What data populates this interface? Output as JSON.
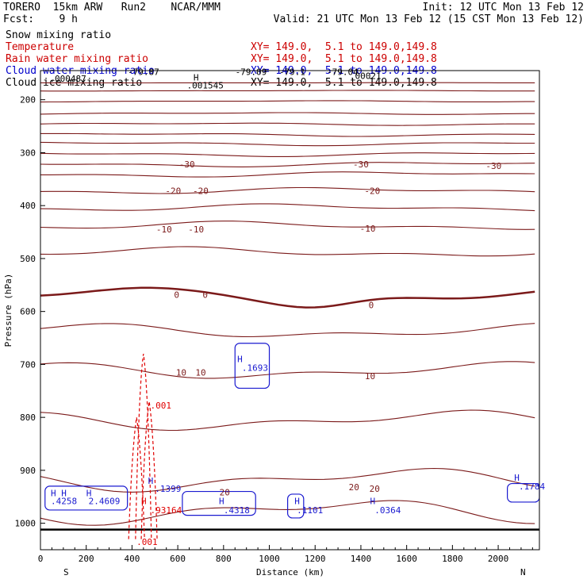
{
  "header": {
    "model": "TORERO  15km ARW   Run2    NCAR/MMM",
    "init": "Init: 12 UTC Mon 13 Feb 12",
    "fcst": "Fcst:    9 h",
    "valid": "Valid: 21 UTC Mon 13 Feb 12 (15 CST Mon 13 Feb 12)"
  },
  "fields": [
    {
      "name": "Snow mixing ratio",
      "color": "#000000",
      "xy": ""
    },
    {
      "name": "Temperature",
      "color": "#cc0000",
      "xy": "XY= 149.0,  5.1 to 149.0,149.8"
    },
    {
      "name": "Rain water mixing ratio",
      "color": "#cc0000",
      "xy": "XY= 149.0,  5.1 to 149.0,149.8"
    },
    {
      "name": "Cloud water mixing ratio",
      "color": "#0000cc",
      "xy": "XY= 149.0,  5.1 to 149.0,149.8"
    },
    {
      "name": "Cloud ice mixing ratio",
      "color": "#000000",
      "xy": "XY= 149.0,  5.1 to 149.0,149.8"
    }
  ],
  "colors": {
    "temperature": "#7b1a1a",
    "rain": "#e00000",
    "cloud_water": "#1a1ad0",
    "ice": "#000000"
  },
  "chart_data": {
    "type": "contour",
    "xlabel": "Distance (km)",
    "ylabel": "Pressure (hPa)",
    "xlim": [
      0,
      2180
    ],
    "ylim": [
      1050,
      145
    ],
    "xticks": [
      0,
      200,
      400,
      600,
      800,
      1000,
      1200,
      1400,
      1600,
      1800,
      2000
    ],
    "yticks": [
      200,
      300,
      400,
      500,
      600,
      700,
      800,
      900,
      1000
    ],
    "end_labels": {
      "left": "S",
      "right": "N"
    },
    "surface_pressure": 1012,
    "temperature_levels": [
      {
        "t": -70,
        "p": 168
      },
      {
        "t": -65,
        "p": 183
      },
      {
        "t": -60,
        "p": 203
      },
      {
        "t": -55,
        "p": 226
      },
      {
        "t": -50,
        "p": 246
      },
      {
        "t": -45,
        "p": 266
      },
      {
        "t": -40,
        "p": 283
      },
      {
        "t": -35,
        "p": 303
      },
      {
        "t": -30,
        "p": 322
      },
      {
        "t": -25,
        "p": 341
      },
      {
        "t": -20,
        "p": 372
      },
      {
        "t": -15,
        "p": 404
      },
      {
        "t": -10,
        "p": 438
      },
      {
        "t": -5,
        "p": 488
      },
      {
        "t": 0,
        "p": 568
      },
      {
        "t": 5,
        "p": 637
      },
      {
        "t": 10,
        "p": 712
      },
      {
        "t": 15,
        "p": 806
      },
      {
        "t": 20,
        "p": 918
      },
      {
        "t": 25,
        "p": 978
      }
    ],
    "temperature_labels": [
      {
        "text": "-30",
        "x": 640,
        "p": 322
      },
      {
        "text": "-30",
        "x": 1400,
        "p": 322
      },
      {
        "text": "-30",
        "x": 1980,
        "p": 325
      },
      {
        "text": "-20",
        "x": 580,
        "p": 372
      },
      {
        "text": "-20",
        "x": 700,
        "p": 372
      },
      {
        "text": "-20",
        "x": 1450,
        "p": 372
      },
      {
        "text": "-10",
        "x": 540,
        "p": 445
      },
      {
        "text": "-10",
        "x": 680,
        "p": 445
      },
      {
        "text": "-10",
        "x": 1430,
        "p": 443
      },
      {
        "text": "0",
        "x": 595,
        "p": 568
      },
      {
        "text": "0",
        "x": 720,
        "p": 568
      },
      {
        "text": "0",
        "x": 1445,
        "p": 588
      },
      {
        "text": "10",
        "x": 615,
        "p": 715
      },
      {
        "text": "10",
        "x": 700,
        "p": 715
      },
      {
        "text": "10",
        "x": 1440,
        "p": 722
      },
      {
        "text": "20",
        "x": 805,
        "p": 941
      },
      {
        "text": "20",
        "x": 1370,
        "p": 932
      },
      {
        "text": "20",
        "x": 1460,
        "p": 935
      }
    ],
    "top_labels": [
      {
        "text": ".000487",
        "x": 120,
        "p": 160,
        "color": "#000000"
      },
      {
        "text": "H",
        "x": 680,
        "p": 158,
        "color": "#000000"
      },
      {
        "text": ".001545",
        "x": 720,
        "p": 173,
        "color": "#000000"
      },
      {
        "text": "-79.87",
        "x": 450,
        "p": 147,
        "color": "#000000"
      },
      {
        "text": "-79.09",
        "x": 920,
        "p": 147,
        "color": "#000000"
      },
      {
        "text": "-79.1",
        "x": 1100,
        "p": 147,
        "color": "#000000"
      },
      {
        "text": "-79.04",
        "x": 1320,
        "p": 147,
        "color": "#000000"
      },
      {
        "text": ".00021",
        "x": 1420,
        "p": 155,
        "color": "#000000"
      }
    ],
    "maxima": [
      {
        "text": "H",
        "x": 860,
        "p": 690,
        "color": "#1a1ad0"
      },
      {
        "text": ".1693",
        "x": 880,
        "p": 706,
        "color": "#1a1ad0"
      },
      {
        "text": ".001",
        "x": 480,
        "p": 777,
        "color": "#e00000"
      },
      {
        "text": "H",
        "x": 470,
        "p": 920,
        "color": "#1a1ad0"
      },
      {
        "text": ".1399",
        "x": 500,
        "p": 935,
        "color": "#1a1ad0"
      },
      {
        "text": "H H",
        "x": 45,
        "p": 943,
        "color": "#1a1ad0"
      },
      {
        "text": "H",
        "x": 200,
        "p": 943,
        "color": "#1a1ad0"
      },
      {
        "text": ".4258",
        "x": 45,
        "p": 958,
        "color": "#1a1ad0"
      },
      {
        "text": "2.4609",
        "x": 210,
        "p": 958,
        "color": "#1a1ad0"
      },
      {
        "text": "H",
        "x": 440,
        "p": 958,
        "color": "#e00000"
      },
      {
        "text": ".93164",
        "x": 480,
        "p": 975,
        "color": "#e00000"
      },
      {
        "text": "H",
        "x": 780,
        "p": 958,
        "color": "#1a1ad0"
      },
      {
        "text": ".4318",
        "x": 800,
        "p": 975,
        "color": "#1a1ad0"
      },
      {
        "text": "H",
        "x": 1110,
        "p": 958,
        "color": "#1a1ad0"
      },
      {
        "text": ".1101",
        "x": 1120,
        "p": 975,
        "color": "#1a1ad0"
      },
      {
        "text": "H",
        "x": 1440,
        "p": 958,
        "color": "#1a1ad0"
      },
      {
        "text": ".0364",
        "x": 1460,
        "p": 975,
        "color": "#1a1ad0"
      },
      {
        "text": "H",
        "x": 2070,
        "p": 914,
        "color": "#1a1ad0"
      },
      {
        "text": ".1784",
        "x": 2090,
        "p": 930,
        "color": "#1a1ad0"
      },
      {
        "text": ".001",
        "x": 420,
        "p": 1035,
        "color": "#e00000"
      }
    ]
  }
}
